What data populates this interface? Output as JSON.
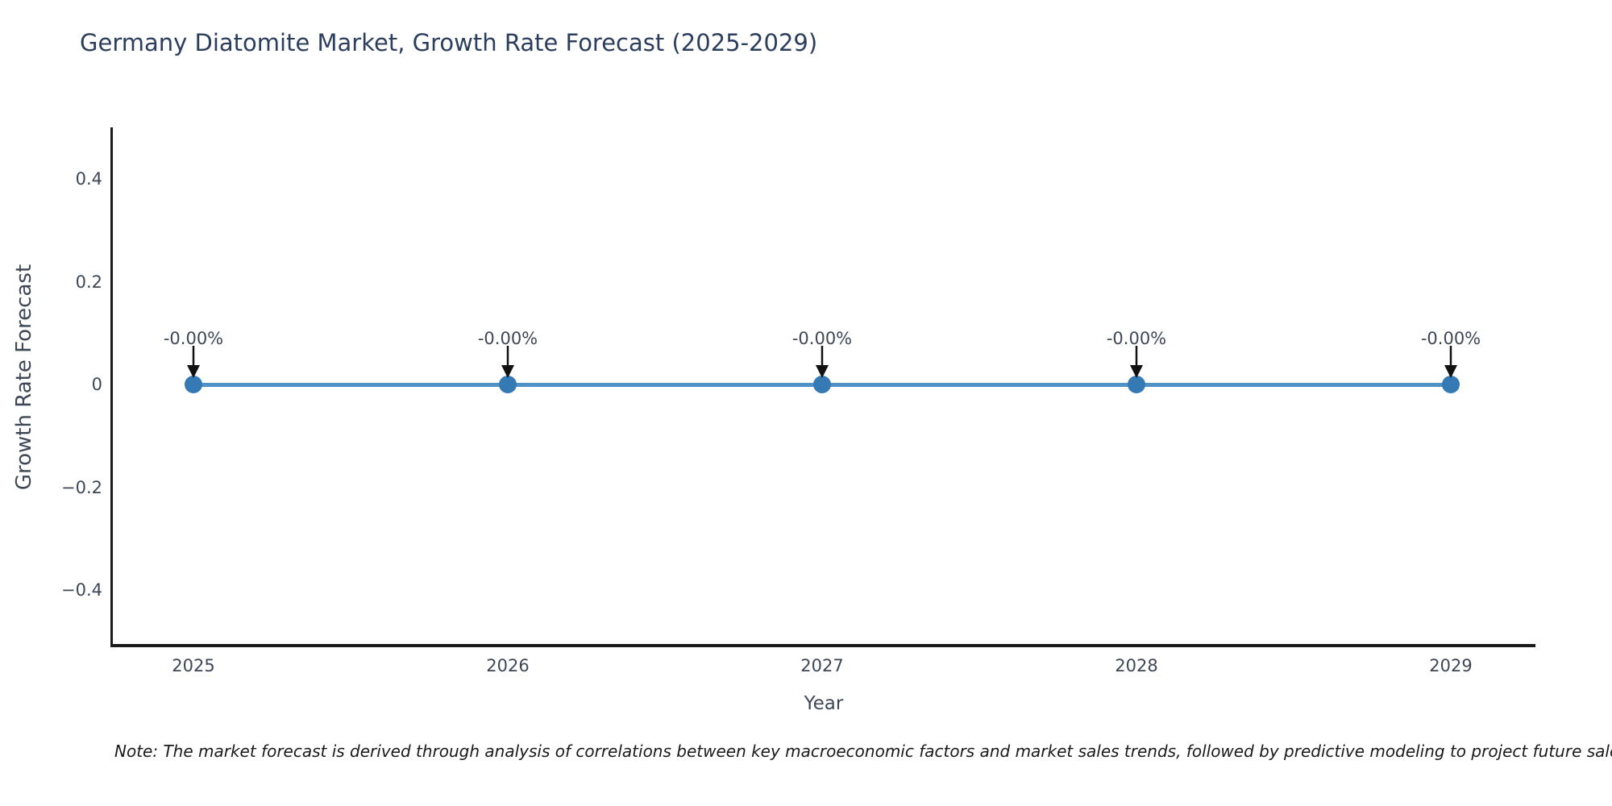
{
  "title": "Germany Diatomite Market, Growth Rate Forecast (2025-2029)",
  "note": "Note: The market forecast is derived through analysis of correlations between key macroeconomic factors and market sales trends, followed by predictive modeling to project future sales.",
  "chart_data": {
    "type": "line",
    "title": "Germany Diatomite Market, Growth Rate Forecast (2025-2029)",
    "xlabel": "Year",
    "ylabel": "Growth Rate Forecast",
    "x": [
      2025,
      2026,
      2027,
      2028,
      2029
    ],
    "series": [
      {
        "name": "Growth Rate Forecast",
        "values": [
          0,
          0,
          0,
          0,
          0
        ],
        "point_labels": [
          "-0.00%",
          "-0.00%",
          "-0.00%",
          "-0.00%",
          "-0.00%"
        ]
      }
    ],
    "xticks": [
      "2025",
      "2026",
      "2027",
      "2028",
      "2029"
    ],
    "yticks": [
      {
        "value": 0.4,
        "label": "0.4"
      },
      {
        "value": 0.2,
        "label": "0.2"
      },
      {
        "value": 0,
        "label": "0"
      },
      {
        "value": -0.2,
        "label": "−0.2"
      },
      {
        "value": -0.4,
        "label": "−0.4"
      }
    ],
    "ylim": [
      -0.5,
      0.5
    ],
    "grid": false,
    "legend_position": "none",
    "annotation_style": "down-arrow",
    "colors": {
      "line": "#4e92c8",
      "marker": "#367ab5",
      "arrow": "#111111",
      "title": "#2c3e5d",
      "tick": "#3d4756",
      "spine": "#1a1a1a",
      "note": "#1a1a1a",
      "background": "#ffffff"
    }
  }
}
